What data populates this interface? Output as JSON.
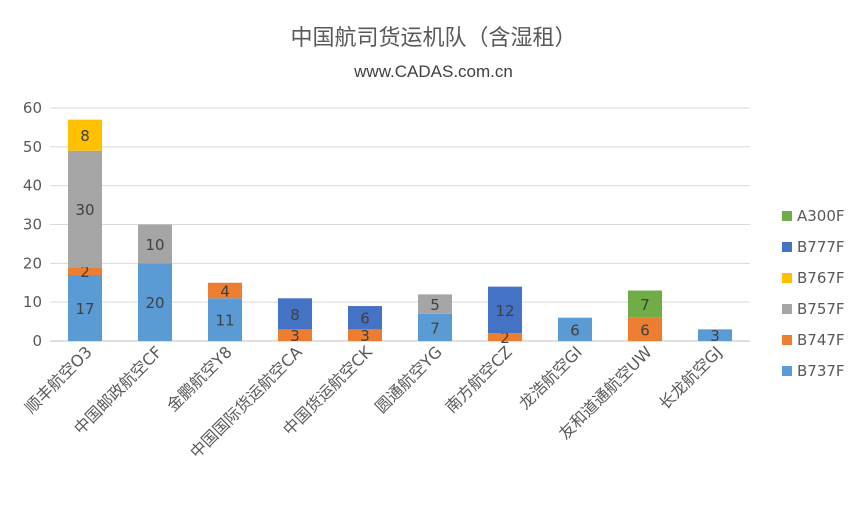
{
  "chart_data": {
    "type": "bar",
    "stacked": true,
    "title": "中国航司货运机队（含湿租）",
    "subtitle": "www.CADAS.com.cn",
    "categories": [
      "顺丰航空O3",
      "中国邮政航空CF",
      "金鹏航空Y8",
      "中国国际货运航空CA",
      "中国货运航空CK",
      "圆通航空YG",
      "南方航空CZ",
      "龙浩航空GI",
      "友和道通航空UW",
      "长龙航空GJ"
    ],
    "ylim": [
      0,
      60
    ],
    "yticks": [
      0,
      10,
      20,
      30,
      40,
      50,
      60
    ],
    "grid": true,
    "legend_position": "right",
    "series": [
      {
        "name": "B737F",
        "color": "#5B9BD5",
        "values": [
          17,
          20,
          11,
          0,
          0,
          7,
          0,
          6,
          0,
          3
        ]
      },
      {
        "name": "B747F",
        "color": "#ED7D31",
        "values": [
          2,
          0,
          4,
          3,
          3,
          0,
          2,
          0,
          6,
          0
        ]
      },
      {
        "name": "B757F",
        "color": "#A5A5A5",
        "values": [
          30,
          10,
          0,
          0,
          0,
          5,
          0,
          0,
          0,
          0
        ]
      },
      {
        "name": "B767F",
        "color": "#FFC000",
        "values": [
          8,
          0,
          0,
          0,
          0,
          0,
          0,
          0,
          0,
          0
        ]
      },
      {
        "name": "B777F",
        "color": "#4472C4",
        "values": [
          0,
          0,
          0,
          8,
          6,
          0,
          12,
          0,
          0,
          0
        ]
      },
      {
        "name": "A300F",
        "color": "#70AD47",
        "values": [
          0,
          0,
          0,
          0,
          0,
          0,
          0,
          0,
          7,
          0
        ]
      }
    ]
  }
}
